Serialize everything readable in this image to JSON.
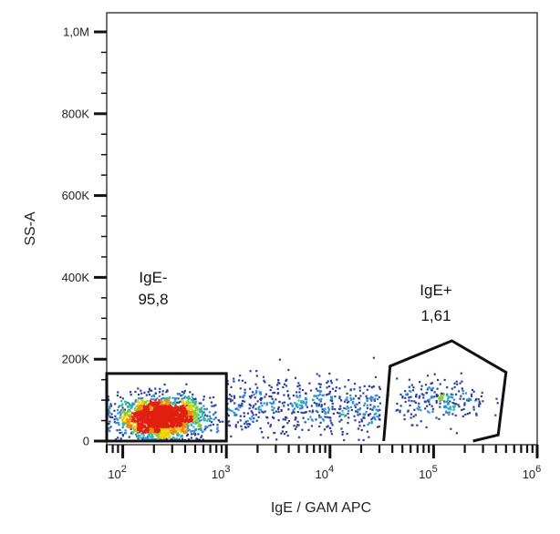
{
  "chart_data": {
    "type": "scatter",
    "title": "",
    "xlabel": "IgE / GAM APC",
    "ylabel": "SS-A",
    "x_scale": "log",
    "xlim": [
      70,
      1000000
    ],
    "ylim": [
      0,
      1050000
    ],
    "x_ticks": [
      {
        "value": 100,
        "base": "10",
        "exp": "2"
      },
      {
        "value": 1000,
        "base": "10",
        "exp": "3"
      },
      {
        "value": 10000,
        "base": "10",
        "exp": "4"
      },
      {
        "value": 100000,
        "base": "10",
        "exp": "5"
      },
      {
        "value": 1000000,
        "base": "10",
        "exp": "6"
      }
    ],
    "y_ticks": [
      {
        "value": 0,
        "label": "0"
      },
      {
        "value": 200000,
        "label": "200K"
      },
      {
        "value": 400000,
        "label": "400K"
      },
      {
        "value": 600000,
        "label": "600K"
      },
      {
        "value": 800000,
        "label": "800K"
      },
      {
        "value": 1000000,
        "label": "1,0M"
      }
    ],
    "density_colors": [
      "#2b3f9e",
      "#2f8fd6",
      "#2fb9a0",
      "#8bcf2e",
      "#f0d000",
      "#f08c00",
      "#e02010"
    ],
    "populations": [
      {
        "name": "main",
        "x_center": 230,
        "x_log_spread": 0.2,
        "y_center": 60000,
        "y_spread": 25000,
        "count": 2200
      },
      {
        "name": "tail",
        "x_min": 1000,
        "x_max": 30000,
        "y_center": 90000,
        "y_spread": 35000,
        "count": 550
      },
      {
        "name": "positive",
        "x_center": 120000,
        "x_log_spread": 0.22,
        "y_center": 100000,
        "y_spread": 25000,
        "count": 230
      }
    ],
    "gates": [
      {
        "id": "ige-neg",
        "label": "IgE-",
        "value": "95,8",
        "vertices": [
          [
            70,
            0
          ],
          [
            70,
            165000
          ],
          [
            1000,
            165000
          ],
          [
            1000,
            0
          ]
        ],
        "closed": true
      },
      {
        "id": "ige-pos",
        "label": "IgE+",
        "value": "1,61",
        "vertices": [
          [
            33000,
            0
          ],
          [
            38000,
            183000
          ],
          [
            150000,
            245000
          ],
          [
            500000,
            168000
          ],
          [
            420000,
            15000
          ],
          [
            240000,
            0
          ]
        ],
        "closed": false
      }
    ]
  }
}
